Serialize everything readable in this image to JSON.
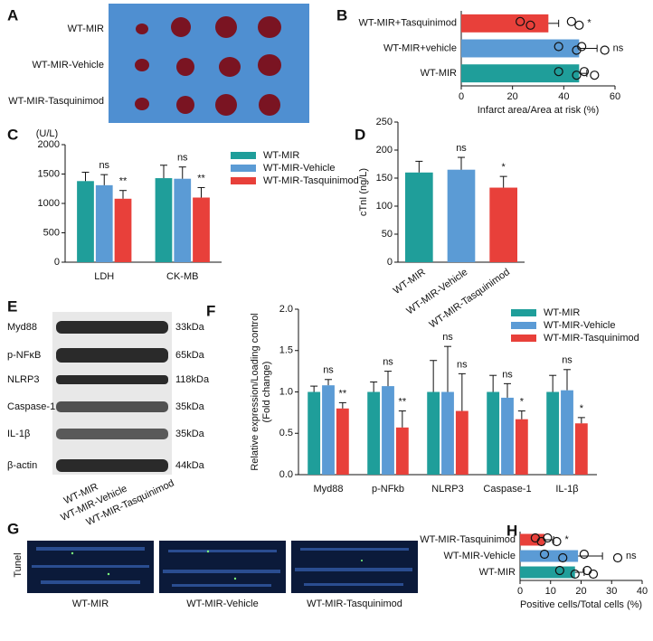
{
  "figure": {
    "A": {
      "panel": "A",
      "rows": [
        "WT-MIR",
        "WT-MIR-Vehicle",
        "WT-MIR-Tasquinimod"
      ]
    },
    "E": {
      "panel": "E",
      "bands": [
        {
          "name": "Myd88",
          "size": "33kDa"
        },
        {
          "name": "p-NFκB",
          "size": "65kDa"
        },
        {
          "name": "NLRP3",
          "size": "118kDa"
        },
        {
          "name": "Caspase-1",
          "size": "35kDa"
        },
        {
          "name": "IL-1β",
          "size": "35kDa"
        },
        {
          "name": "β-actin",
          "size": "44kDa"
        }
      ],
      "lanes": [
        "WT-MIR",
        "WT-MIR-Vehicle",
        "WT-MIR-Tasquinimod"
      ]
    },
    "G": {
      "panel": "G",
      "stain": "Tunel",
      "images": [
        "WT-MIR",
        "WT-MIR-Vehicle",
        "WT-MIR-Tasquinimod"
      ]
    }
  },
  "chart_data": [
    {
      "panel": "B",
      "type": "hbar",
      "categories": [
        "WT-MIR+Tasquinimod",
        "WT-MIR+vehicle",
        "WT-MIR"
      ],
      "values": [
        34,
        46,
        46
      ],
      "errors": [
        4,
        7,
        3
      ],
      "colors": [
        "#e8403a",
        "#5b9bd5",
        "#1f9e9a"
      ],
      "points": [
        [
          23,
          27,
          43,
          46
        ],
        [
          38,
          45,
          47,
          56
        ],
        [
          38,
          45,
          48,
          52
        ]
      ],
      "annotations": [
        "*",
        "ns",
        null
      ],
      "xlim": [
        0,
        60
      ],
      "xticks": [
        0,
        20,
        40,
        60
      ],
      "xlabel": "Infarct area/Area at risk  (%)"
    },
    {
      "panel": "C",
      "type": "grouped-bar",
      "categories": [
        "LDH",
        "CK-MB"
      ],
      "yunit": "(U/L)",
      "series": [
        {
          "name": "WT-MIR",
          "color": "#1f9e9a",
          "values": [
            1380,
            1430
          ],
          "errors": [
            150,
            220
          ],
          "annotations": [
            null,
            null
          ]
        },
        {
          "name": "WT-MIR-Vehicle",
          "color": "#5b9bd5",
          "values": [
            1310,
            1420
          ],
          "errors": [
            180,
            200
          ],
          "annotations": [
            "ns",
            "ns"
          ]
        },
        {
          "name": "WT-MIR-Tasquinimod",
          "color": "#e8403a",
          "values": [
            1080,
            1100
          ],
          "errors": [
            140,
            170
          ],
          "annotations": [
            "**",
            "**"
          ]
        }
      ],
      "ylim": [
        0,
        2000
      ],
      "yticks": [
        0,
        500,
        1000,
        1500,
        2000
      ]
    },
    {
      "panel": "D",
      "type": "bar",
      "categories": [
        "WT-MIR",
        "WT-MIR-Vehicle",
        "WT-MIR-Tasquinimod"
      ],
      "values": [
        160,
        165,
        133
      ],
      "errors": [
        20,
        22,
        20
      ],
      "colors": [
        "#1f9e9a",
        "#5b9bd5",
        "#e8403a"
      ],
      "annotations": [
        null,
        "ns",
        "*"
      ],
      "ylabel": "cTnI (ng/L)",
      "ylim": [
        0,
        250
      ],
      "yticks": [
        0,
        50,
        100,
        150,
        200,
        250
      ]
    },
    {
      "panel": "F",
      "type": "grouped-bar",
      "categories": [
        "Myd88",
        "p-NFkb",
        "NLRP3",
        "Caspase-1",
        "IL-1β"
      ],
      "ylabel": [
        "Relative expression/Loading control",
        "(Fold change)"
      ],
      "series": [
        {
          "name": "WT-MIR",
          "color": "#1f9e9a",
          "values": [
            1.0,
            1.0,
            1.0,
            1.0,
            1.0
          ],
          "errors": [
            0.07,
            0.12,
            0.38,
            0.2,
            0.2
          ],
          "annotations": [
            null,
            null,
            null,
            null,
            null
          ]
        },
        {
          "name": "WT-MIR-Vehicle",
          "color": "#5b9bd5",
          "values": [
            1.08,
            1.07,
            1.0,
            0.93,
            1.02
          ],
          "errors": [
            0.07,
            0.18,
            0.55,
            0.17,
            0.25
          ],
          "annotations": [
            "ns",
            "ns",
            "ns",
            "ns",
            "ns"
          ]
        },
        {
          "name": "WT-MIR-Tasquinimod",
          "color": "#e8403a",
          "values": [
            0.8,
            0.57,
            0.77,
            0.67,
            0.62
          ],
          "errors": [
            0.07,
            0.2,
            0.45,
            0.1,
            0.07
          ],
          "annotations": [
            "**",
            "**",
            "ns",
            "*",
            "*"
          ]
        }
      ],
      "ylim": [
        0,
        2.0
      ],
      "yticks": [
        {
          "value": 0,
          "label": "0.0"
        },
        0.5,
        {
          "value": 1,
          "label": "1.0"
        },
        1.5,
        {
          "value": 2,
          "label": "2.0"
        }
      ]
    },
    {
      "panel": "H",
      "type": "hbar",
      "categories": [
        "WT-MIR-Tasquinimod",
        "WT-MIR-Vehicle",
        "WT-MIR"
      ],
      "values": [
        8,
        19,
        18
      ],
      "errors": [
        3,
        8,
        3
      ],
      "colors": [
        "#e8403a",
        "#5b9bd5",
        "#1f9e9a"
      ],
      "points": [
        [
          5,
          7,
          9,
          12
        ],
        [
          8,
          14,
          21,
          32
        ],
        [
          13,
          18,
          22,
          24
        ]
      ],
      "annotations": [
        "*",
        "ns",
        null
      ],
      "xlim": [
        0,
        40
      ],
      "xticks": [
        0,
        10,
        20,
        30,
        40
      ],
      "xlabel": "Positive cells/Total cells (%)"
    }
  ]
}
